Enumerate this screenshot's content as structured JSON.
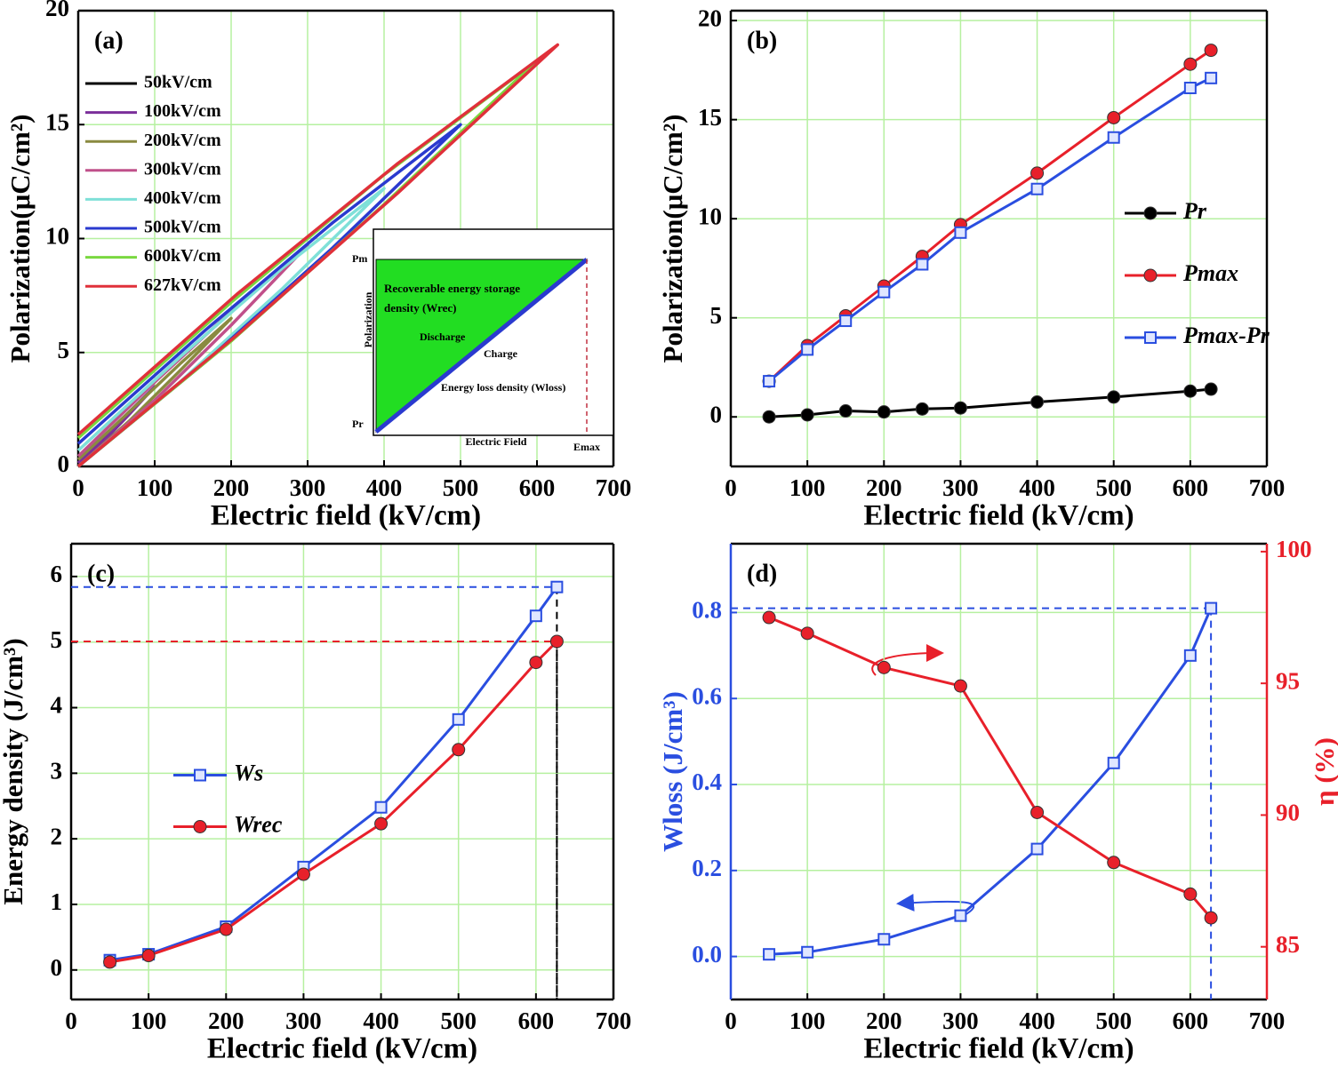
{
  "chart_data": [
    {
      "type": "line",
      "panel": "(a)",
      "x_label": "Electric field (kV/cm)",
      "y_label": "Polarization(μC/cm²)",
      "xlim": [
        0,
        700
      ],
      "xticks": [
        0,
        100,
        200,
        300,
        400,
        500,
        600,
        700
      ],
      "ylim": [
        0,
        20
      ],
      "yticks": [
        0,
        5,
        10,
        15,
        20
      ],
      "grid": true,
      "legend": "upper left",
      "series": [
        {
          "name": "50kV/cm",
          "color": "#000000",
          "x": [
            0,
            17,
            33,
            50,
            33,
            17,
            0
          ],
          "values": [
            0,
            0.55,
            1.2,
            1.8,
            1.25,
            0.65,
            0.05
          ]
        },
        {
          "name": "100kV/cm",
          "color": "#7b2f9a",
          "x": [
            0,
            33,
            67,
            100,
            67,
            33,
            0
          ],
          "values": [
            0,
            1.1,
            2.3,
            3.5,
            2.4,
            1.3,
            0.15
          ]
        },
        {
          "name": "200kV/cm",
          "color": "#8a8a40",
          "x": [
            0,
            67,
            133,
            200,
            133,
            67,
            0
          ],
          "values": [
            0,
            2.0,
            4.2,
            6.5,
            4.5,
            2.4,
            0.3
          ]
        },
        {
          "name": "300kV/cm",
          "color": "#c0508a",
          "x": [
            0,
            100,
            200,
            300,
            200,
            100,
            0
          ],
          "values": [
            0,
            2.9,
            6.2,
            9.7,
            6.8,
            3.7,
            0.45
          ]
        },
        {
          "name": "400kV/cm",
          "color": "#7fe0d8",
          "x": [
            0,
            133,
            267,
            400,
            267,
            133,
            0
          ],
          "values": [
            0,
            3.7,
            7.8,
            12.2,
            8.7,
            4.8,
            0.7
          ]
        },
        {
          "name": "500kV/cm",
          "color": "#2a3acf",
          "x": [
            0,
            167,
            333,
            500,
            333,
            167,
            0
          ],
          "values": [
            0,
            4.6,
            9.6,
            15.0,
            10.7,
            6.0,
            1.0
          ]
        },
        {
          "name": "600kV/cm",
          "color": "#7ad840",
          "x": [
            0,
            200,
            400,
            600,
            400,
            200,
            0
          ],
          "values": [
            0,
            5.5,
            11.5,
            17.8,
            12.8,
            7.2,
            1.25
          ]
        },
        {
          "name": "627kV/cm",
          "color": "#e0303a",
          "x": [
            0,
            209,
            418,
            627,
            418,
            209,
            0
          ],
          "values": [
            0,
            5.8,
            12.0,
            18.5,
            13.3,
            7.6,
            1.4
          ]
        }
      ],
      "inset": {
        "labels": [
          "Recoverable energy storage",
          "density (Wrec)",
          "Discharge",
          "Charge",
          "Energy loss density (Wloss)",
          "Electric Field",
          "Emax",
          "Pm",
          "Pr",
          "Polarization"
        ]
      }
    },
    {
      "type": "line",
      "panel": "(b)",
      "x_label": "Electric field (kV/cm)",
      "y_label": "Polarization(μC/cm²)",
      "xlim": [
        0,
        700
      ],
      "xticks": [
        0,
        100,
        200,
        300,
        400,
        500,
        600,
        700
      ],
      "ylim": [
        -2.5,
        20.5
      ],
      "yticks": [
        0,
        5,
        10,
        15,
        20
      ],
      "grid": true,
      "legend": "center right",
      "x": [
        50,
        100,
        150,
        200,
        250,
        300,
        400,
        500,
        600,
        627
      ],
      "series": [
        {
          "name": "Pr",
          "color": "#000000",
          "marker": "circle",
          "values": [
            0,
            0.1,
            0.3,
            0.25,
            0.4,
            0.45,
            0.75,
            1.0,
            1.3,
            1.4
          ]
        },
        {
          "name": "Pmax",
          "color": "#e8202a",
          "marker": "circle",
          "values": [
            1.8,
            3.6,
            5.1,
            6.6,
            8.1,
            9.7,
            12.3,
            15.1,
            17.8,
            18.5
          ]
        },
        {
          "name": "Pmax-Pr",
          "color": "#2a4ee0",
          "marker": "square",
          "values": [
            1.8,
            3.4,
            4.85,
            6.3,
            7.7,
            9.3,
            11.5,
            14.1,
            16.6,
            17.1
          ]
        }
      ]
    },
    {
      "type": "line",
      "panel": "(c)",
      "x_label": "Electric field (kV/cm)",
      "y_label": "Energy density (J/cm³)",
      "xlim": [
        0,
        700
      ],
      "xticks": [
        0,
        100,
        200,
        300,
        400,
        500,
        600,
        700
      ],
      "ylim": [
        -0.45,
        6.5
      ],
      "yticks": [
        0,
        1,
        2,
        3,
        4,
        5,
        6
      ],
      "grid": true,
      "legend": "center left",
      "guide_color": "#000000",
      "x": [
        50,
        100,
        200,
        300,
        400,
        500,
        600,
        627
      ],
      "series": [
        {
          "name": "Ws",
          "color": "#2a4ee0",
          "marker": "square",
          "guide": true,
          "values": [
            0.15,
            0.24,
            0.66,
            1.57,
            2.48,
            3.82,
            5.4,
            5.84
          ]
        },
        {
          "name": "Wrec",
          "color": "#e8202a",
          "marker": "circle",
          "guide": true,
          "values": [
            0.12,
            0.22,
            0.62,
            1.46,
            2.23,
            3.36,
            4.69,
            5.01
          ]
        }
      ]
    },
    {
      "type": "line",
      "panel": "(d)",
      "x_label": "Electric field (kV/cm)",
      "y_label": "Wloss (J/cm³)",
      "y2_label": "η (%)",
      "xlim": [
        0,
        700
      ],
      "xticks": [
        0,
        100,
        200,
        300,
        400,
        500,
        600,
        700
      ],
      "ylim": [
        -0.1,
        0.96
      ],
      "yticks": [
        {
          "value": 0,
          "label": "0.0"
        },
        0.2,
        0.4,
        0.6,
        0.8
      ],
      "y2lim": [
        83,
        100.3
      ],
      "y2ticks": [
        85,
        90,
        95,
        100
      ],
      "grid": true,
      "guide_color": "#2a4ee0",
      "x": [
        50,
        100,
        200,
        300,
        400,
        500,
        600,
        627
      ],
      "series": [
        {
          "name": "Wloss",
          "color": "#2a4ee0",
          "marker": "square",
          "guide": true,
          "values": [
            0.005,
            0.01,
            0.04,
            0.095,
            0.25,
            0.45,
            0.7,
            0.81
          ]
        },
        {
          "name": "η",
          "color": "#e8202a",
          "marker": "circle",
          "axis": "y2",
          "values": [
            97.5,
            96.9,
            95.6,
            94.9,
            90.1,
            88.2,
            87.0,
            86.1
          ]
        }
      ]
    }
  ]
}
